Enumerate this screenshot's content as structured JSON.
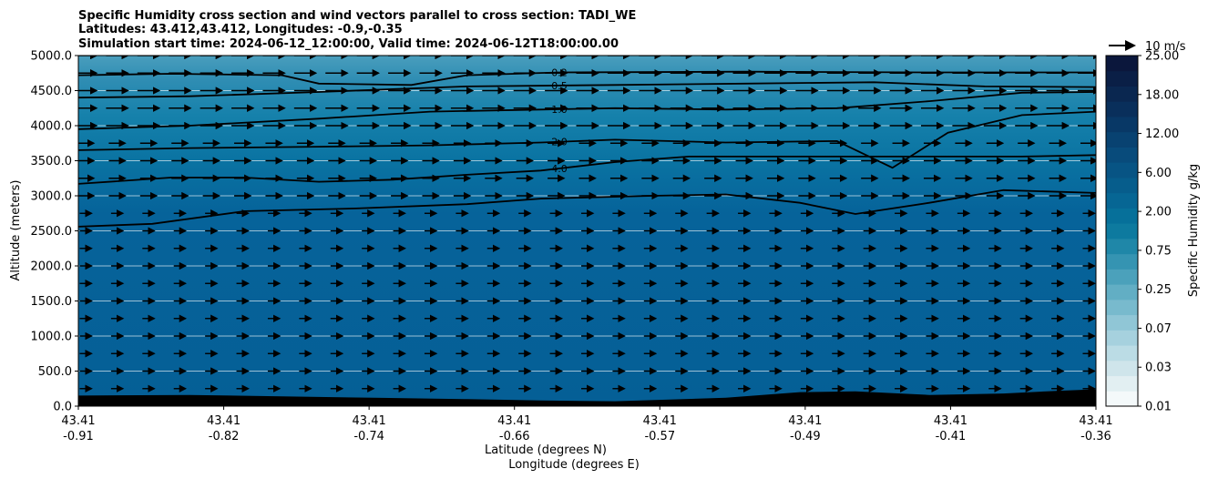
{
  "chart_data": {
    "type": "contourf",
    "title_lines": [
      "Specific Humidity cross section and wind vectors parallel to cross section: TADI_WE",
      "Latitudes: 43.412,43.412, Longitudes: -0.9,-0.35",
      "Simulation start time: 2024-06-12_12:00:00, Valid time: 2024-06-12T18:00:00.00"
    ],
    "xlabel_lat": "Latitude (degrees N)",
    "xlabel_lon": "Longitude (degrees E)",
    "ylabel": "Altitude (meters)",
    "ylim": [
      0,
      5000
    ],
    "y_ticks": [
      "0.0",
      "500.0",
      "1000.0",
      "1500.0",
      "2000.0",
      "2500.0",
      "3000.0",
      "3500.0",
      "4000.0",
      "4500.0",
      "5000.0"
    ],
    "x_ticks": [
      {
        "lat": "43.41",
        "lon": "-0.91"
      },
      {
        "lat": "43.41",
        "lon": "-0.82"
      },
      {
        "lat": "43.41",
        "lon": "-0.74"
      },
      {
        "lat": "43.41",
        "lon": "-0.66"
      },
      {
        "lat": "43.41",
        "lon": "-0.57"
      },
      {
        "lat": "43.41",
        "lon": "-0.49"
      },
      {
        "lat": "43.41",
        "lon": "-0.41"
      },
      {
        "lat": "43.41",
        "lon": "-0.36"
      }
    ],
    "grid": "horizontal",
    "colorbar": {
      "label": "Specific Humidity g/kg",
      "tick_labels": [
        "0.01",
        "0.03",
        "0.07",
        "0.25",
        "0.75",
        "2.00",
        "6.00",
        "12.00",
        "18.00",
        "25.00"
      ]
    },
    "quiver_key": "10 m/s",
    "contour_lines": [
      {
        "level": "0.2",
        "label": "0.2",
        "points": [
          [
            -0.91,
            4720
          ],
          [
            -0.86,
            4740
          ],
          [
            -0.8,
            4720
          ],
          [
            -0.78,
            4600
          ],
          [
            -0.73,
            4580
          ],
          [
            -0.7,
            4720
          ],
          [
            -0.65,
            4760
          ],
          [
            -0.55,
            4770
          ],
          [
            -0.45,
            4760
          ],
          [
            -0.36,
            4760
          ]
        ]
      },
      {
        "level": "0.5",
        "label": "0.5",
        "points": [
          [
            -0.91,
            4400
          ],
          [
            -0.85,
            4420
          ],
          [
            -0.78,
            4480
          ],
          [
            -0.7,
            4560
          ],
          [
            -0.62,
            4580
          ],
          [
            -0.55,
            4600
          ],
          [
            -0.48,
            4620
          ],
          [
            -0.42,
            4560
          ],
          [
            -0.36,
            4550
          ]
        ]
      },
      {
        "level": "1.0",
        "label": "1.0",
        "points": [
          [
            -0.91,
            3950
          ],
          [
            -0.85,
            4000
          ],
          [
            -0.78,
            4100
          ],
          [
            -0.72,
            4200
          ],
          [
            -0.66,
            4230
          ],
          [
            -0.62,
            4250
          ],
          [
            -0.56,
            4230
          ],
          [
            -0.5,
            4250
          ],
          [
            -0.45,
            4350
          ],
          [
            -0.4,
            4470
          ],
          [
            -0.36,
            4480
          ]
        ]
      },
      {
        "level": "2.0",
        "label": "2.0",
        "points": [
          [
            -0.91,
            3650
          ],
          [
            -0.85,
            3680
          ],
          [
            -0.78,
            3700
          ],
          [
            -0.72,
            3720
          ],
          [
            -0.66,
            3760
          ],
          [
            -0.62,
            3800
          ],
          [
            -0.56,
            3760
          ],
          [
            -0.5,
            3780
          ],
          [
            -0.47,
            3400
          ],
          [
            -0.44,
            3900
          ],
          [
            -0.4,
            4150
          ],
          [
            -0.36,
            4200
          ]
        ]
      },
      {
        "level": "4.0",
        "label": "4.0",
        "points": [
          [
            -0.91,
            3170
          ],
          [
            -0.86,
            3260
          ],
          [
            -0.82,
            3260
          ],
          [
            -0.78,
            3200
          ],
          [
            -0.74,
            3230
          ],
          [
            -0.7,
            3300
          ],
          [
            -0.66,
            3360
          ],
          [
            -0.62,
            3480
          ],
          [
            -0.58,
            3560
          ],
          [
            -0.52,
            3560
          ],
          [
            -0.46,
            3560
          ],
          [
            -0.4,
            3560
          ],
          [
            -0.36,
            3580
          ]
        ]
      },
      {
        "level": "6.0",
        "label": "",
        "points": [
          [
            -0.91,
            2560
          ],
          [
            -0.87,
            2600
          ],
          [
            -0.82,
            2780
          ],
          [
            -0.76,
            2820
          ],
          [
            -0.7,
            2880
          ],
          [
            -0.66,
            2960
          ],
          [
            -0.6,
            3000
          ],
          [
            -0.56,
            3020
          ],
          [
            -0.52,
            2900
          ],
          [
            -0.49,
            2740
          ],
          [
            -0.45,
            2900
          ],
          [
            -0.41,
            3080
          ],
          [
            -0.36,
            3040
          ]
        ]
      }
    ],
    "terrain_heights": [
      [
        -0.91,
        150
      ],
      [
        -0.85,
        160
      ],
      [
        -0.8,
        140
      ],
      [
        -0.75,
        120
      ],
      [
        -0.7,
        100
      ],
      [
        -0.66,
        80
      ],
      [
        -0.62,
        70
      ],
      [
        -0.56,
        120
      ],
      [
        -0.52,
        200
      ],
      [
        -0.49,
        210
      ],
      [
        -0.45,
        160
      ],
      [
        -0.41,
        180
      ],
      [
        -0.38,
        220
      ],
      [
        -0.36,
        240
      ]
    ],
    "wind": {
      "direction": "west-to-east",
      "levels_m": [
        250,
        500,
        750,
        1000,
        1250,
        1500,
        1750,
        2000,
        2250,
        2500,
        2750,
        3000,
        3250,
        3500,
        3750,
        4000,
        4250,
        4500,
        4750,
        5000
      ]
    }
  }
}
